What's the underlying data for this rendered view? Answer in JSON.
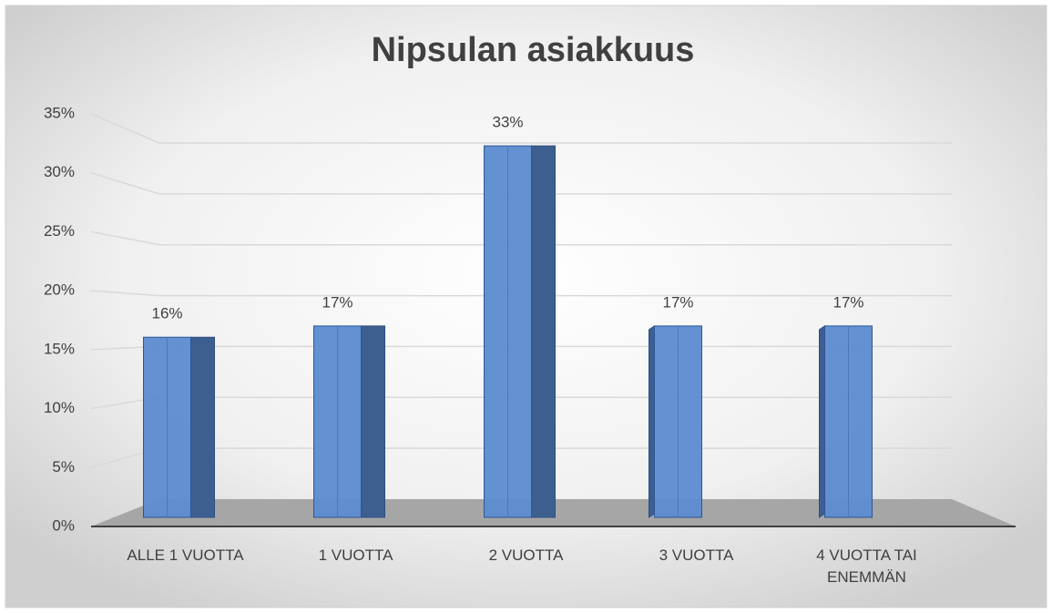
{
  "chart_data": {
    "type": "bar",
    "title": "Nipsulan asiakkuus",
    "categories": [
      "ALLE 1 VUOTTA",
      "1 VUOTTA",
      "2 VUOTTA",
      "3 VUOTTA",
      "4 VUOTTA TAI ENEMMÄN"
    ],
    "values": [
      16,
      17,
      33,
      17,
      17
    ],
    "value_labels": [
      "16%",
      "17%",
      "33%",
      "17%",
      "17%"
    ],
    "color": "#5b8bd0",
    "ylim": [
      0,
      35
    ],
    "yticks": [
      {
        "value": 0,
        "label": "0%"
      },
      {
        "value": 5,
        "label": "5%"
      },
      {
        "value": 10,
        "label": "10%"
      },
      {
        "value": 15,
        "label": "15%"
      },
      {
        "value": 20,
        "label": "20%"
      },
      {
        "value": 25,
        "label": "25%"
      },
      {
        "value": 30,
        "label": "30%"
      },
      {
        "value": 35,
        "label": "35%"
      }
    ],
    "grid": true
  }
}
